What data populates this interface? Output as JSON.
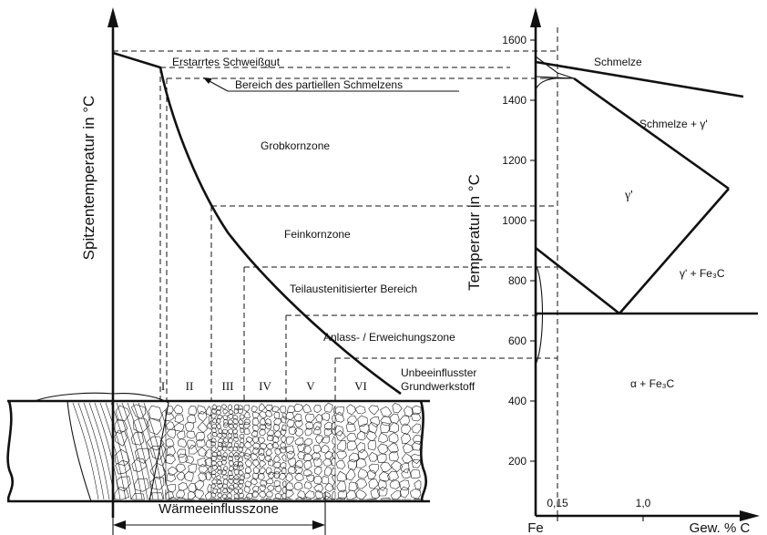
{
  "left_diagram": {
    "y_axis_title": "Spitzentemperatur in °C",
    "zone_labels": {
      "weld_metal": "Erstarrtes Schweißgut",
      "partial_melting": "Bereich des partiellen Schmelzens",
      "coarse_grain": "Grobkornzone",
      "fine_grain": "Feinkornzone",
      "partial_austenitized": "Teilaustenitisierter Bereich",
      "tempering": "Anlass- / Erweichungszone",
      "base_material_line1": "Unbeeinflusster",
      "base_material_line2": "Grundwerkstoff"
    },
    "zone_numbers": [
      "I",
      "II",
      "III",
      "IV",
      "V",
      "VI"
    ],
    "haz_label": "Wärmeeinflusszone"
  },
  "right_diagram": {
    "y_axis_title": "Temperatur in °C",
    "y_ticks": [
      "200",
      "400",
      "600",
      "800",
      "1000",
      "1200",
      "1400",
      "1600"
    ],
    "x_ticks": [
      "0,15",
      "1,0"
    ],
    "x_origin_label": "Fe",
    "x_axis_label": "Gew. % C",
    "phase_labels": {
      "melt": "Schmelze",
      "melt_gamma": "Schmelze + γ'",
      "gamma": "γ'",
      "gamma_cementite": "γ' + Fe₃C",
      "alpha_cementite": "α + Fe₃C"
    }
  }
}
